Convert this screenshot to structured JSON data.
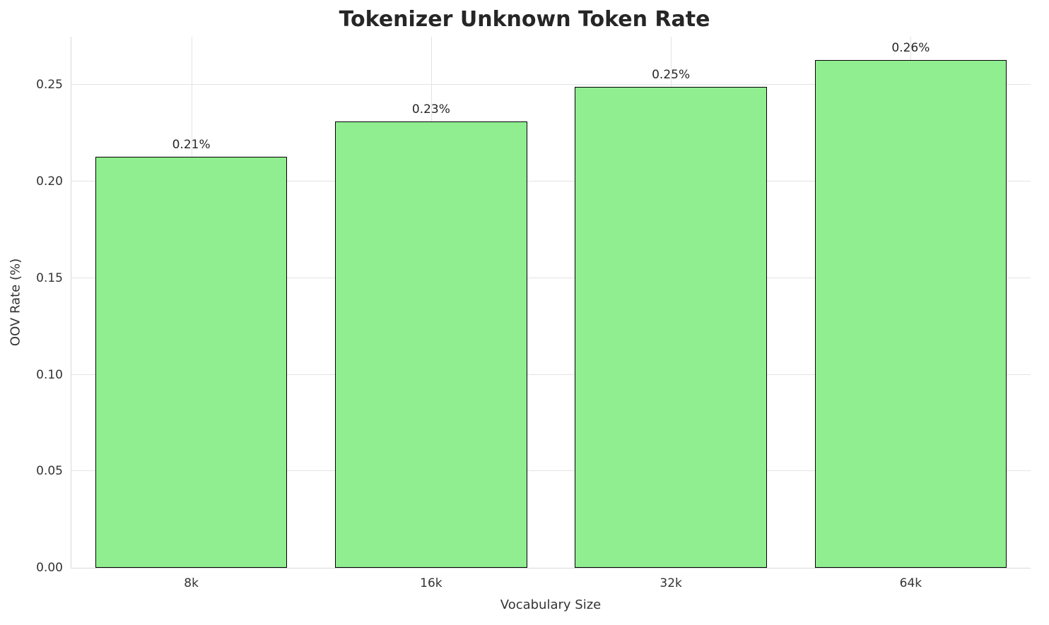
{
  "chart_data": {
    "type": "bar",
    "title": "Tokenizer Unknown Token Rate",
    "xlabel": "Vocabulary Size",
    "ylabel": "OOV Rate (%)",
    "categories": [
      "8k",
      "16k",
      "32k",
      "64k"
    ],
    "values": [
      0.213,
      0.231,
      0.249,
      0.263
    ],
    "bar_labels": [
      "0.21%",
      "0.23%",
      "0.25%",
      "0.26%"
    ],
    "ylim": [
      0,
      0.275
    ],
    "ytick_labels": [
      "0.00",
      "0.05",
      "0.10",
      "0.15",
      "0.20",
      "0.25"
    ],
    "grid": true,
    "legend": false,
    "bar_color": "#90EE90",
    "bar_edge_color": "#000000"
  }
}
